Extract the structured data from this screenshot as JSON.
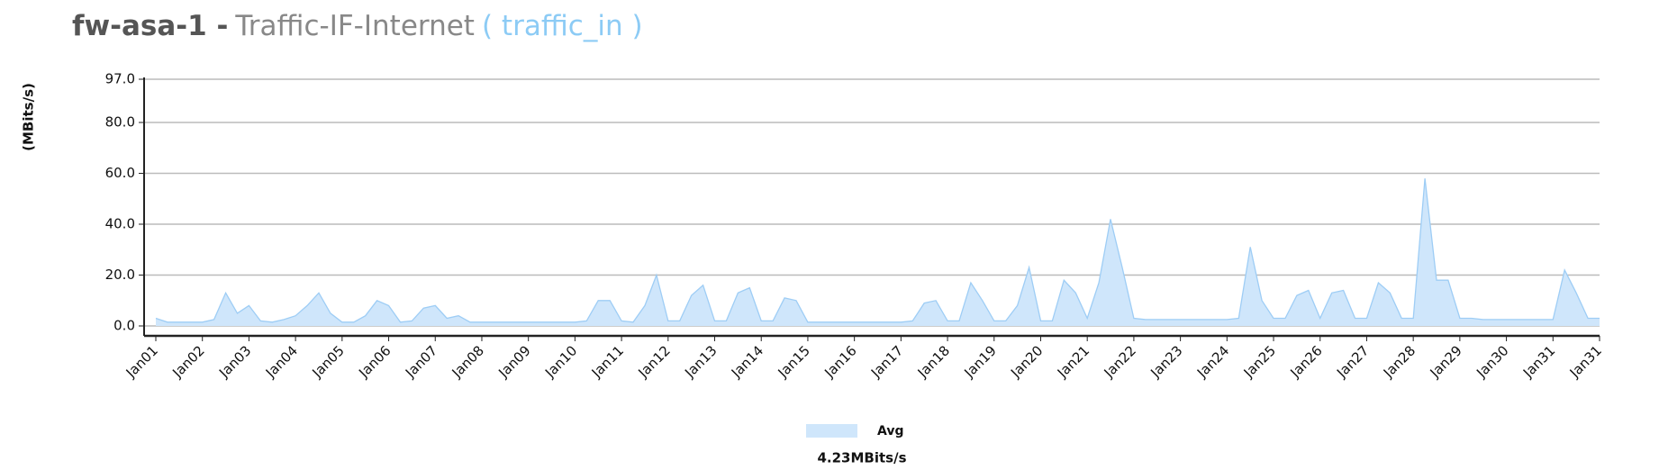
{
  "chart_data": {
    "type": "area",
    "title": {
      "host": "fw-asa-1 -",
      "graph": "Traffic-IF-Internet",
      "item": "( traffic_in )"
    },
    "ylabel": "(MBits/s)",
    "ylim": [
      0,
      97
    ],
    "yticks": [
      {
        "value": 0,
        "label": "0.0"
      },
      {
        "value": 20,
        "label": "20.0"
      },
      {
        "value": 40,
        "label": "40.0"
      },
      {
        "value": 60,
        "label": "60.0"
      },
      {
        "value": 80,
        "label": "80.0"
      },
      {
        "value": 97,
        "label": "97.0"
      }
    ],
    "xlim": [
      0,
      31
    ],
    "xticks": [
      {
        "value": 0,
        "label": "Jan01"
      },
      {
        "value": 1,
        "label": "Jan02"
      },
      {
        "value": 2,
        "label": "Jan03"
      },
      {
        "value": 3,
        "label": "Jan04"
      },
      {
        "value": 4,
        "label": "Jan05"
      },
      {
        "value": 5,
        "label": "Jan06"
      },
      {
        "value": 6,
        "label": "Jan07"
      },
      {
        "value": 7,
        "label": "Jan08"
      },
      {
        "value": 8,
        "label": "Jan09"
      },
      {
        "value": 9,
        "label": "Jan10"
      },
      {
        "value": 10,
        "label": "Jan11"
      },
      {
        "value": 11,
        "label": "Jan12"
      },
      {
        "value": 12,
        "label": "Jan13"
      },
      {
        "value": 13,
        "label": "Jan14"
      },
      {
        "value": 14,
        "label": "Jan15"
      },
      {
        "value": 15,
        "label": "Jan16"
      },
      {
        "value": 16,
        "label": "Jan17"
      },
      {
        "value": 17,
        "label": "Jan18"
      },
      {
        "value": 18,
        "label": "Jan19"
      },
      {
        "value": 19,
        "label": "Jan20"
      },
      {
        "value": 20,
        "label": "Jan21"
      },
      {
        "value": 21,
        "label": "Jan22"
      },
      {
        "value": 22,
        "label": "Jan23"
      },
      {
        "value": 23,
        "label": "Jan24"
      },
      {
        "value": 24,
        "label": "Jan25"
      },
      {
        "value": 25,
        "label": "Jan26"
      },
      {
        "value": 26,
        "label": "Jan27"
      },
      {
        "value": 27,
        "label": "Jan28"
      },
      {
        "value": 28,
        "label": "Jan29"
      },
      {
        "value": 29,
        "label": "Jan30"
      },
      {
        "value": 30,
        "label": "Jan31"
      },
      {
        "value": 31,
        "label": "Jan31"
      }
    ],
    "grid": true,
    "x": [
      0,
      0.25,
      0.5,
      0.75,
      1,
      1.25,
      1.5,
      1.75,
      2,
      2.25,
      2.5,
      2.75,
      3,
      3.25,
      3.5,
      3.75,
      4,
      4.25,
      4.5,
      4.75,
      5,
      5.25,
      5.5,
      5.75,
      6,
      6.25,
      6.5,
      6.75,
      7,
      7.25,
      7.5,
      7.75,
      8,
      8.25,
      8.5,
      8.75,
      9,
      9.25,
      9.5,
      9.75,
      10,
      10.25,
      10.5,
      10.75,
      11,
      11.25,
      11.5,
      11.75,
      12,
      12.25,
      12.5,
      12.75,
      13,
      13.25,
      13.5,
      13.75,
      14,
      14.25,
      14.5,
      14.75,
      15,
      15.25,
      15.5,
      15.75,
      16,
      16.25,
      16.5,
      16.75,
      17,
      17.25,
      17.5,
      17.75,
      18,
      18.25,
      18.5,
      18.75,
      19,
      19.25,
      19.5,
      19.75,
      20,
      20.25,
      20.5,
      20.75,
      21,
      21.25,
      21.5,
      21.75,
      22,
      22.25,
      22.5,
      22.75,
      23,
      23.25,
      23.5,
      23.75,
      24,
      24.25,
      24.5,
      24.75,
      25,
      25.25,
      25.5,
      25.75,
      26,
      26.25,
      26.5,
      26.75,
      27,
      27.25,
      27.5,
      27.75,
      28,
      28.25,
      28.5,
      28.75,
      29,
      29.25,
      29.5,
      29.75,
      30,
      30.25,
      30.5,
      30.75,
      31
    ],
    "series": [
      {
        "name": "Avg",
        "color": "#cfe6fb",
        "line_color": "#9ecdf5",
        "values": [
          3,
          1.5,
          1.5,
          1.5,
          1.5,
          2.5,
          13,
          5,
          8,
          2,
          1.5,
          2.5,
          4,
          8,
          13,
          5,
          1.5,
          1.5,
          4,
          10,
          8,
          1.5,
          2,
          7,
          8,
          3,
          4,
          1.5,
          1.5,
          1.5,
          1.5,
          1.5,
          1.5,
          1.5,
          1.5,
          1.5,
          1.5,
          2,
          10,
          10,
          2,
          1.5,
          8,
          20,
          2,
          2,
          12,
          16,
          2,
          2,
          13,
          15,
          2,
          2,
          11,
          10,
          1.5,
          1.5,
          1.5,
          1.5,
          1.5,
          1.5,
          1.5,
          1.5,
          1.5,
          2,
          9,
          10,
          2,
          2,
          17,
          10,
          2,
          2,
          8,
          23,
          2,
          2,
          18,
          13,
          3,
          17,
          42,
          23,
          3,
          2.5,
          2.5,
          2.5,
          2.5,
          2.5,
          2.5,
          2.5,
          2.5,
          3,
          31,
          10,
          3,
          3,
          12,
          14,
          3,
          13,
          14,
          3,
          3,
          17,
          13,
          3,
          3,
          58,
          18,
          18,
          3,
          3,
          2.5,
          2.5,
          2.5,
          2.5,
          2.5,
          2.5,
          2.5,
          22,
          13,
          3,
          3
        ]
      }
    ],
    "legend_summary": "4.23MBits/s"
  }
}
